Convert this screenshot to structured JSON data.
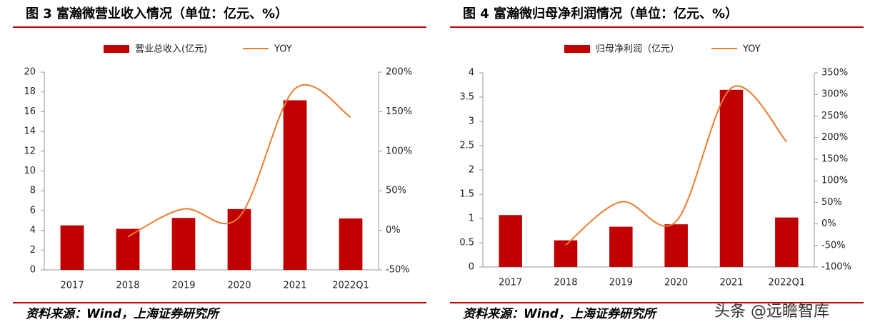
{
  "chart_data": [
    {
      "type": "bar-line",
      "title": "图 3 富瀚微营业收入情况（单位：亿元、%）",
      "categories": [
        "2017",
        "2018",
        "2019",
        "2020",
        "2021",
        "2022Q1"
      ],
      "series": [
        {
          "name": "营业总收入(亿元)",
          "type": "bar",
          "color": "#c00000",
          "values": [
            4.5,
            4.15,
            5.25,
            6.15,
            17.15,
            5.2
          ]
        },
        {
          "name": "YOY",
          "type": "line",
          "axis": "y2",
          "color": "#ed7d31",
          "values": [
            null,
            -8,
            27,
            17,
            179,
            143
          ]
        }
      ],
      "ylim": [
        0,
        20
      ],
      "yticks": [
        0,
        2,
        4,
        6,
        8,
        10,
        12,
        14,
        16,
        18,
        20
      ],
      "y2lim": [
        -50,
        200
      ],
      "y2ticks": [
        {
          "value": -50,
          "label": "-50%"
        },
        {
          "value": 0,
          "label": "0%"
        },
        {
          "value": 50,
          "label": "50%"
        },
        {
          "value": 100,
          "label": "100%"
        },
        {
          "value": 150,
          "label": "150%"
        },
        {
          "value": 200,
          "label": "200%"
        }
      ],
      "source": "资料来源：Wind，上海证券研究所"
    },
    {
      "type": "bar-line",
      "title": "图 4 富瀚微归母净利润情况（单位：亿元、%）",
      "categories": [
        "2017",
        "2018",
        "2019",
        "2020",
        "2021",
        "2022Q1"
      ],
      "series": [
        {
          "name": "归母净利润（亿元）",
          "type": "bar",
          "color": "#c00000",
          "values": [
            1.07,
            0.55,
            0.83,
            0.88,
            3.65,
            1.02
          ]
        },
        {
          "name": "YOY",
          "type": "line",
          "axis": "y2",
          "color": "#ed7d31",
          "values": [
            null,
            -49,
            51,
            6,
            315,
            190
          ]
        }
      ],
      "ylim": [
        0,
        4
      ],
      "yticks": [
        0,
        0.5,
        1,
        1.5,
        2,
        2.5,
        3,
        3.5,
        4
      ],
      "y2lim": [
        -100,
        350
      ],
      "y2ticks": [
        {
          "value": -100,
          "label": "-100%"
        },
        {
          "value": -50,
          "label": "-50%"
        },
        {
          "value": 0,
          "label": "0%"
        },
        {
          "value": 50,
          "label": "50%"
        },
        {
          "value": 100,
          "label": "100%"
        },
        {
          "value": 150,
          "label": "150%"
        },
        {
          "value": 200,
          "label": "200%"
        },
        {
          "value": 250,
          "label": "250%"
        },
        {
          "value": 300,
          "label": "300%"
        },
        {
          "value": 350,
          "label": "350%"
        }
      ],
      "source": "资料来源：Wind，上海证券研究所"
    }
  ],
  "watermark": "头条 @远瞻智库"
}
